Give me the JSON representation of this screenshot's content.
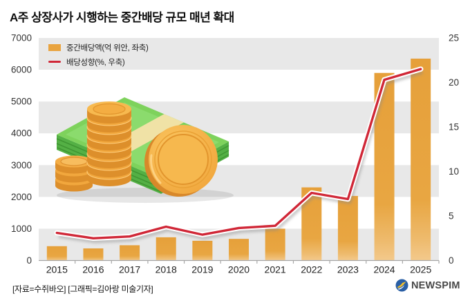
{
  "title": "A주 상장사가 시행하는 중간배당 규모 매년 확대",
  "legend": {
    "bar_label": "중간배당액(억 위안, 좌축)",
    "line_label": "배당성향(%, 우축)"
  },
  "footer": {
    "source": "[자료=수쥐바오] [그래픽=김아랑 미술기자]",
    "logo_text": "NEWSPIM"
  },
  "colors": {
    "bar_top": "#e6a03a",
    "bar_bottom": "#f3c98c",
    "line": "#d02737",
    "band_gray": "#e8e8e8",
    "axis": "#a6a6a6"
  },
  "chart_data": {
    "type": "bar+line combo",
    "categories": [
      "2015",
      "2016",
      "2017",
      "2018",
      "2019",
      "2020",
      "2021",
      "2022",
      "2023",
      "2024",
      "2025"
    ],
    "series": [
      {
        "name": "중간배당액(억 위안, 좌축)",
        "type": "bar",
        "axis": "left",
        "values": [
          450,
          380,
          480,
          730,
          620,
          680,
          1000,
          2300,
          2030,
          5900,
          6350
        ]
      },
      {
        "name": "배당성향(%, 우축)",
        "type": "line",
        "axis": "right",
        "values": [
          3.1,
          2.5,
          2.7,
          3.8,
          2.9,
          3.65,
          3.9,
          7.6,
          6.9,
          20.3,
          21.5
        ]
      }
    ],
    "left_axis": {
      "min": 0,
      "max": 7000,
      "ticks": [
        0,
        1000,
        2000,
        3000,
        4000,
        5000,
        6000,
        7000
      ]
    },
    "right_axis": {
      "min": 0,
      "max": 25,
      "ticks": [
        0,
        5,
        10,
        15,
        20,
        25
      ]
    },
    "grid": "alternating horizontal gray bands",
    "legend_position": "top-left inside plot"
  }
}
